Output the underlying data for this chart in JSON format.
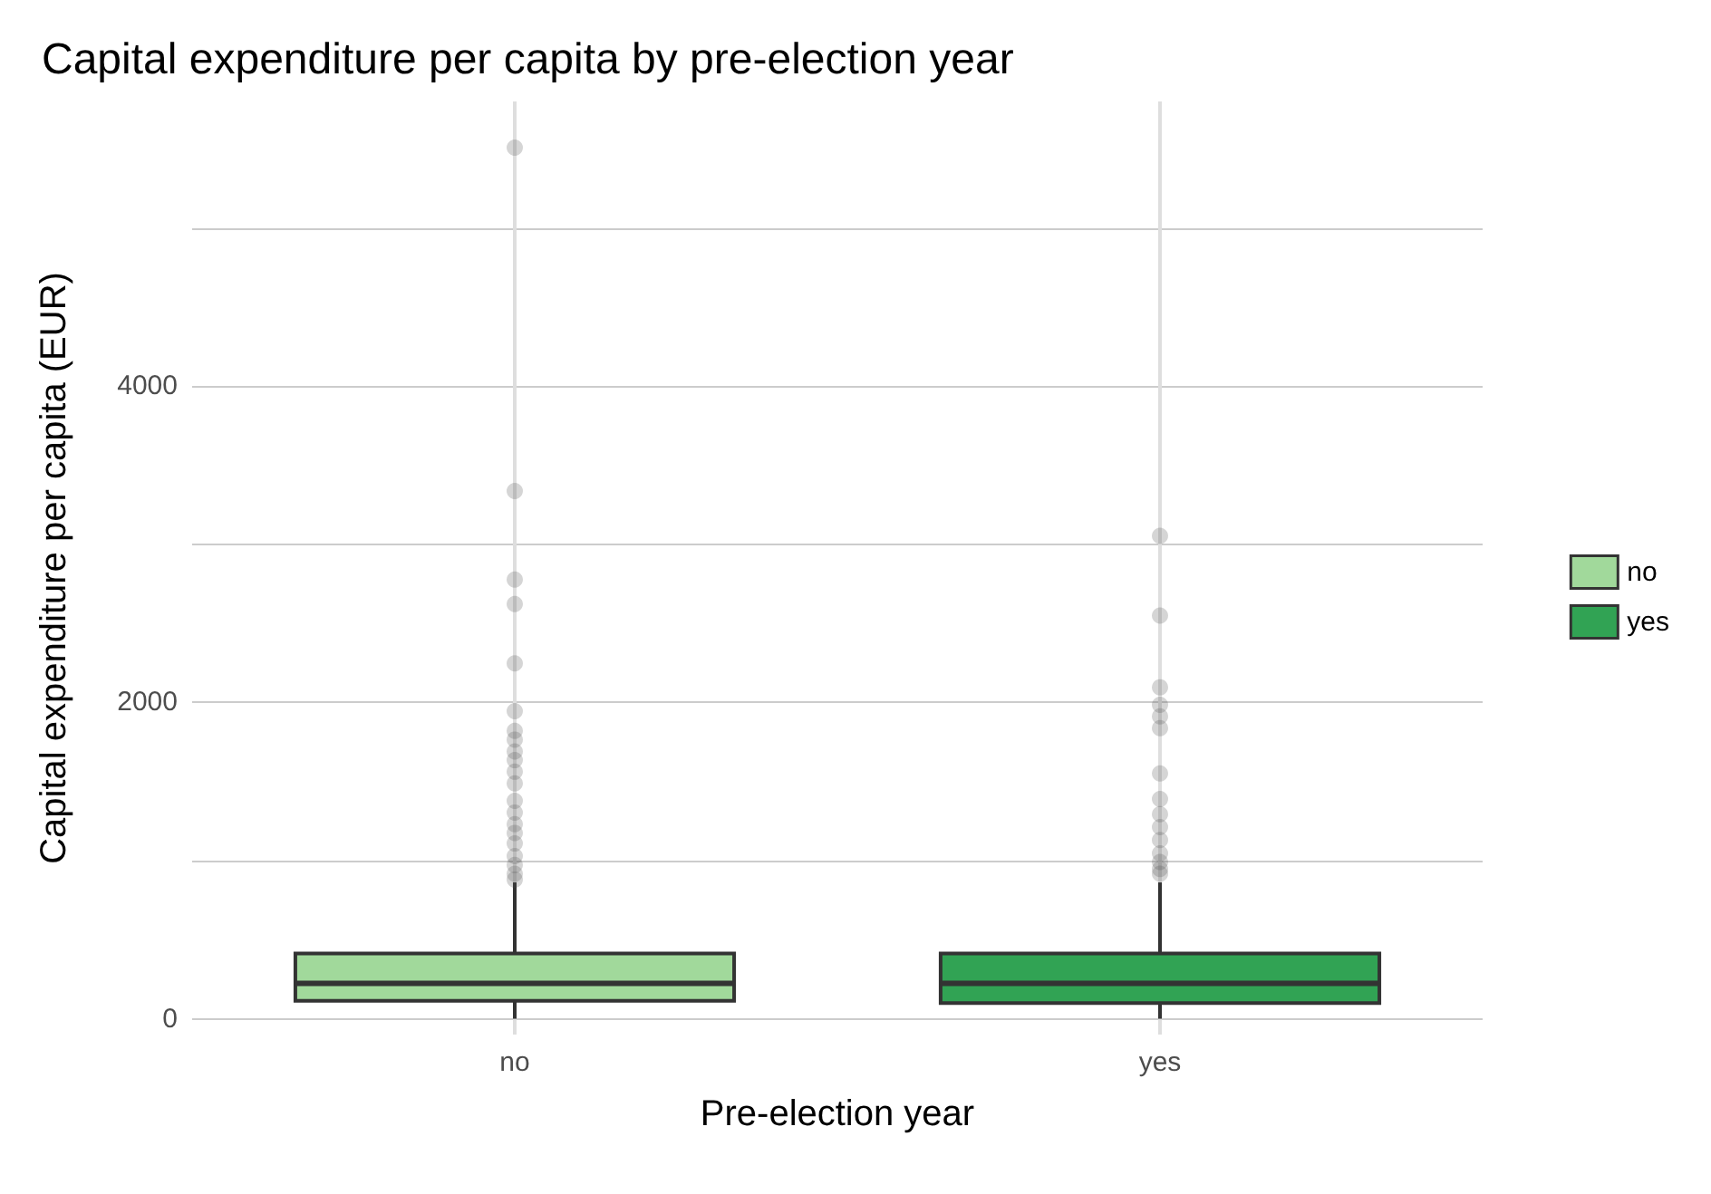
{
  "chart_data": {
    "type": "box",
    "title": "Capital expenditure per capita by pre-election year",
    "xlabel": "Pre-election year",
    "ylabel": "Capital expenditure per capita (EUR)",
    "categories": [
      "no",
      "yes"
    ],
    "series": [
      {
        "name": "no",
        "color": "#a1d99b",
        "boxes": [
          {
            "low": 0,
            "q1": 114,
            "median": 224,
            "q3": 412,
            "high": 862,
            "outliers": [
              5508,
              3337,
              2777,
              2622,
              2247,
              1945,
              1820,
              1765,
              1690,
              1635,
              1562,
              1488,
              1378,
              1304,
              1230,
              1175,
              1108,
              1028,
              972,
              917,
              880
            ]
          },
          null
        ]
      },
      {
        "name": "yes",
        "color": "#31a354",
        "boxes": [
          null,
          {
            "low": 0,
            "q1": 99,
            "median": 224,
            "q3": 412,
            "high": 862,
            "outliers": [
              3053,
              2549,
              2096,
              1985,
              1912,
              1838,
              1551,
              1389,
              1293,
              1212,
              1130,
              1046,
              991,
              947,
              917
            ]
          }
        ]
      }
    ],
    "ylim": [
      -100,
      5800
    ],
    "yticks": [
      0,
      {
        "value": 1000,
        "label": null
      },
      2000,
      {
        "value": 3000,
        "label": null
      },
      4000,
      {
        "value": 5000,
        "label": null
      }
    ],
    "grid": true,
    "legend": "right"
  }
}
